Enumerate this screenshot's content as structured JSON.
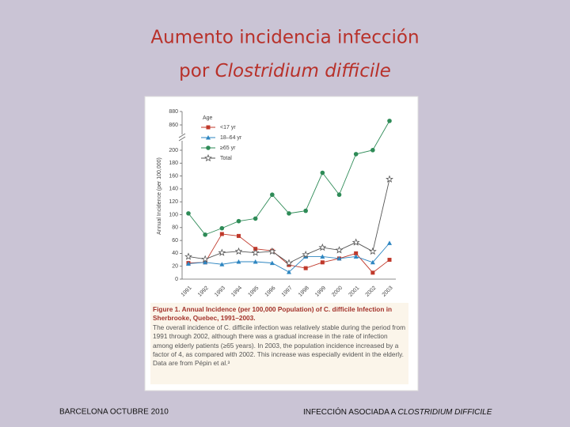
{
  "slide": {
    "title_line1": "Aumento incidencia infección",
    "title_line2_plain": "por ",
    "title_line2_italic": "Clostridium difficile",
    "footer_left": "BARCELONA OCTUBRE 2010",
    "footer_right_plain": "INFECCIÓN ASOCIADA A ",
    "footer_right_italic": "CLOSTRIDIUM DIFFICILE"
  },
  "chart_data": {
    "type": "line",
    "y_label": "Annual Incidence (per 100,000)",
    "legend_title": "Age",
    "legend_position": "upper left",
    "categories": [
      "1991",
      "1992",
      "1993",
      "1994",
      "1995",
      "1996",
      "1997",
      "1998",
      "1999",
      "2000",
      "2001",
      "2002",
      "2003"
    ],
    "series": [
      {
        "name": "<17 yr",
        "color": "#c0392b",
        "marker": "square",
        "values": [
          25,
          26,
          70,
          67,
          47,
          44,
          22,
          17,
          26,
          32,
          40,
          10,
          30
        ]
      },
      {
        "name": "18–64 yr",
        "color": "#2e86c1",
        "marker": "triangle",
        "values": [
          24,
          26,
          23,
          27,
          27,
          25,
          11,
          35,
          35,
          32,
          35,
          26,
          56
        ]
      },
      {
        "name": "≥65 yr",
        "color": "#2e8b57",
        "marker": "circle",
        "values": [
          102,
          69,
          79,
          90,
          94,
          131,
          102,
          106,
          165,
          131,
          194,
          203,
          866
        ]
      },
      {
        "name": "Total",
        "color": "#555555",
        "marker": "star",
        "values": [
          35,
          31,
          41,
          43,
          41,
          43,
          25,
          38,
          49,
          45,
          57,
          43,
          155
        ]
      }
    ],
    "ylim": [
      0,
      880
    ],
    "axis_break": [
      200,
      860
    ],
    "yticks": [
      0,
      20,
      40,
      60,
      80,
      100,
      120,
      140,
      160,
      180,
      200,
      860,
      880
    ],
    "grid": false,
    "caption_title": "Figure 1. Annual Incidence (per 100,000 Population) of C. difficile Infection in Sherbrooke, Quebec, 1991–2003.",
    "caption_text": "The overall incidence of C. difficile infection was relatively stable during the period from 1991 through 2002, although there was a gradual increase in the rate of infection among elderly patients (≥65 years). In 2003, the population incidence increased by a factor of 4, as compared with 2002. This increase was especially evident in the elderly. Data are from Pépin et al.³"
  }
}
